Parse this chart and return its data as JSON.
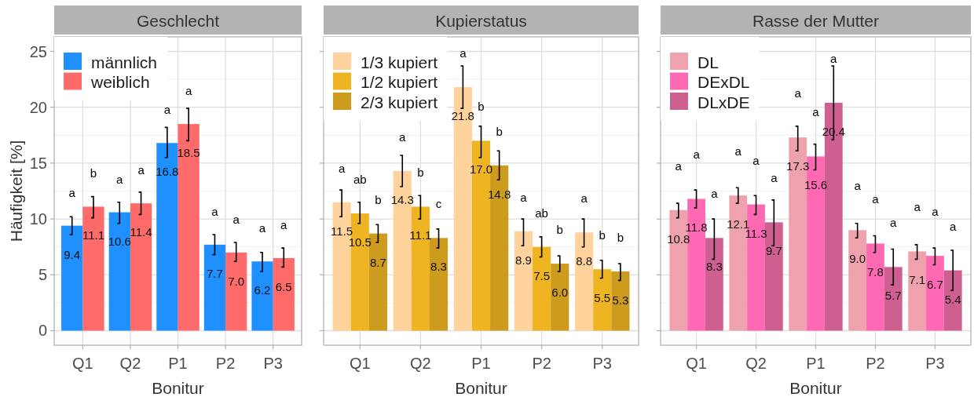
{
  "chart_data": [
    {
      "type": "bar",
      "title": "Geschlecht",
      "xlabel": "Bonitur",
      "ylabel": "Häufigkeit [%]",
      "categories": [
        "Q1",
        "Q2",
        "P1",
        "P2",
        "P3"
      ],
      "series": [
        {
          "name": "männlich",
          "color": "#1e90ff",
          "values": [
            9.4,
            10.6,
            16.8,
            7.7,
            6.2
          ],
          "value_labels": [
            "9.4",
            "10.6",
            "16.8",
            "7.7",
            "6.2"
          ],
          "errors": [
            [
              8.6,
              10.2
            ],
            [
              9.6,
              11.5
            ],
            [
              15.5,
              18.2
            ],
            [
              6.8,
              8.6
            ],
            [
              5.3,
              7.0
            ]
          ]
        },
        {
          "name": "weiblich",
          "color": "#ff6a6a",
          "values": [
            11.1,
            11.4,
            18.5,
            7.0,
            6.5
          ],
          "value_labels": [
            "11.1",
            "11.4",
            "18.5",
            "7.0",
            "6.5"
          ],
          "errors": [
            [
              10.1,
              12.0
            ],
            [
              10.4,
              12.4
            ],
            [
              17.0,
              19.9
            ],
            [
              6.2,
              7.9
            ],
            [
              5.7,
              7.4
            ]
          ]
        }
      ],
      "ylim": [
        -1.3,
        26.3
      ],
      "yticks": [
        0,
        5,
        10,
        15,
        20,
        25
      ],
      "grid": true,
      "legend": "top left",
      "annotations": [
        "a",
        "b",
        "a",
        "a",
        "a",
        "a",
        "a",
        "a",
        "a",
        "a"
      ]
    },
    {
      "type": "bar",
      "title": "Kupierstatus",
      "xlabel": "Bonitur",
      "categories": [
        "Q1",
        "Q2",
        "P1",
        "P2",
        "P3"
      ],
      "series": [
        {
          "name": "1/3 kupiert",
          "color": "#ffd39b",
          "values": [
            11.5,
            14.3,
            21.8,
            8.9,
            8.8
          ],
          "value_labels": [
            "11.5",
            "14.3",
            "21.8",
            "8.9",
            "8.8"
          ],
          "errors": [
            [
              10.2,
              12.6
            ],
            [
              12.9,
              15.7
            ],
            [
              19.9,
              23.7
            ],
            [
              7.6,
              10.0
            ],
            [
              7.5,
              10.0
            ]
          ]
        },
        {
          "name": "1/2 kupiert",
          "color": "#eeb422",
          "values": [
            10.5,
            11.1,
            17.0,
            7.5,
            5.5
          ],
          "value_labels": [
            "10.5",
            "11.1",
            "17.0",
            "7.5",
            "5.5"
          ],
          "errors": [
            [
              9.6,
              11.5
            ],
            [
              10.0,
              12.1
            ],
            [
              15.5,
              18.3
            ],
            [
              6.6,
              8.4
            ],
            [
              4.7,
              6.3
            ]
          ]
        },
        {
          "name": "2/3 kupiert",
          "color": "#cd9b1d",
          "values": [
            8.7,
            8.3,
            14.8,
            6.0,
            5.3
          ],
          "value_labels": [
            "8.7",
            "8.3",
            "14.8",
            "6.0",
            "5.3"
          ],
          "errors": [
            [
              7.9,
              9.5
            ],
            [
              7.4,
              9.1
            ],
            [
              13.5,
              16.1
            ],
            [
              5.3,
              6.7
            ],
            [
              4.5,
              6.0
            ]
          ]
        }
      ],
      "ylim": [
        -1.3,
        26.3
      ],
      "yticks": [
        0,
        5,
        10,
        15,
        20,
        25
      ],
      "tick_labels": "x",
      "grid": true,
      "legend": "top left",
      "annotations": [
        "a",
        "ab",
        "b",
        "a",
        "b",
        "c",
        "a",
        "b",
        "b",
        "a",
        "ab",
        "b",
        "a",
        "b",
        "b"
      ]
    },
    {
      "type": "bar",
      "title": "Rasse der Mutter",
      "xlabel": "Bonitur",
      "categories": [
        "Q1",
        "Q2",
        "P1",
        "P2",
        "P3"
      ],
      "series": [
        {
          "name": "DL",
          "color": "#eea2ad",
          "values": [
            10.8,
            12.1,
            17.3,
            9.0,
            7.1
          ],
          "value_labels": [
            "10.8",
            "12.1",
            "17.3",
            "9.0",
            "7.1"
          ],
          "errors": [
            [
              10.1,
              11.4
            ],
            [
              11.4,
              12.8
            ],
            [
              16.1,
              18.3
            ],
            [
              8.3,
              9.6
            ],
            [
              6.4,
              7.7
            ]
          ]
        },
        {
          "name": "DExDL",
          "color": "#ff69b4",
          "values": [
            11.8,
            11.3,
            15.6,
            7.8,
            6.7
          ],
          "value_labels": [
            "11.8",
            "11.3",
            "15.6",
            "7.8",
            "6.7"
          ],
          "errors": [
            [
              11.0,
              12.6
            ],
            [
              10.4,
              12.1
            ],
            [
              14.4,
              16.7
            ],
            [
              7.0,
              8.5
            ],
            [
              5.9,
              7.4
            ]
          ]
        },
        {
          "name": "DLxDE",
          "color": "#cd6090",
          "values": [
            8.3,
            9.7,
            20.4,
            5.7,
            5.4
          ],
          "value_labels": [
            "8.3",
            "9.7",
            "20.4",
            "5.7",
            "5.4"
          ],
          "errors": [
            [
              6.4,
              10.0
            ],
            [
              7.6,
              11.7
            ],
            [
              17.1,
              23.7
            ],
            [
              4.1,
              7.3
            ],
            [
              3.6,
              7.2
            ]
          ]
        }
      ],
      "ylim": [
        -1.3,
        26.3
      ],
      "yticks": [
        0,
        5,
        10,
        15,
        20,
        25
      ],
      "tick_labels": "x",
      "grid": true,
      "legend": "top left",
      "annotations": [
        "a",
        "a",
        "a",
        "a",
        "a",
        "a",
        "a",
        "a",
        "a",
        "a",
        "a",
        "a",
        "a",
        "a",
        "a"
      ]
    }
  ]
}
